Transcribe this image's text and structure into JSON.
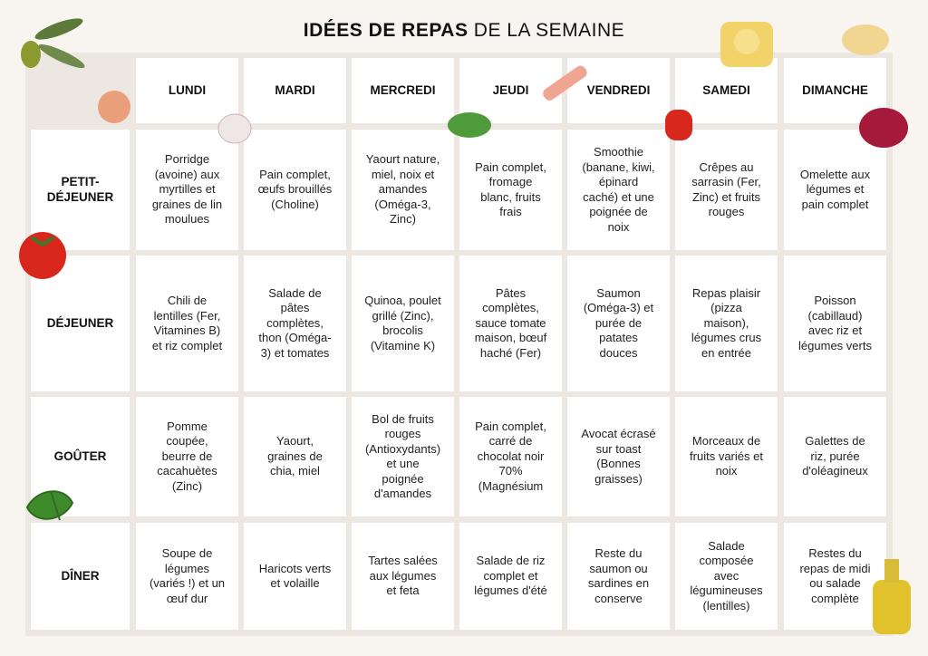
{
  "title": {
    "bold": "IDÉES DE REPAS",
    "rest": "DE LA SEMAINE"
  },
  "days": [
    "LUNDI",
    "MARDI",
    "MERCREDI",
    "JEUDI",
    "VENDREDI",
    "SAMEDI",
    "DIMANCHE"
  ],
  "meals": [
    "PETIT-DÉJEUNER",
    "DÉJEUNER",
    "GOÛTER",
    "DÎNER"
  ],
  "rows": [
    [
      "Porridge (avoine) aux myrtilles et graines de lin moulues",
      "Pain complet, œufs brouillés (Choline)",
      "Yaourt nature, miel, noix et amandes (Oméga-3, Zinc)",
      "Pain complet, fromage blanc, fruits frais",
      "Smoothie (banane, kiwi, épinard caché) et une poignée de noix",
      "Crêpes au sarrasin (Fer, Zinc) et fruits rouges",
      "Omelette aux légumes et pain complet"
    ],
    [
      "Chili de lentilles (Fer, Vitamines B) et riz complet",
      "Salade de pâtes complètes, thon (Oméga-3) et tomates",
      "Quinoa, poulet grillé (Zinc), brocolis (Vitamine K)",
      "Pâtes complètes, sauce tomate maison, bœuf haché (Fer)",
      "Saumon (Oméga-3) et purée de patates douces",
      "Repas plaisir (pizza maison), légumes crus en entrée",
      "Poisson (cabillaud) avec riz et légumes verts"
    ],
    [
      "Pomme coupée, beurre de cacahuètes (Zinc)",
      "Yaourt, graines de chia, miel",
      "Bol de fruits rouges (Antioxydants) et une poignée d'amandes",
      "Pain complet, carré de chocolat noir 70% (Magnésium",
      "Avocat écrasé sur toast (Bonnes graisses)",
      "Morceaux de fruits variés et noix",
      "Galettes de riz, purée d'oléagineux"
    ],
    [
      "Soupe de légumes (variés !) et un œuf dur",
      "Haricots verts et volaille",
      "Tartes salées aux légumes et feta",
      "Salade de riz complet et légumes d'été",
      "Reste du saumon ou sardines en conserve",
      "Salade composée avec légumineuses (lentilles)",
      "Restes du repas de midi ou salade complète"
    ]
  ]
}
